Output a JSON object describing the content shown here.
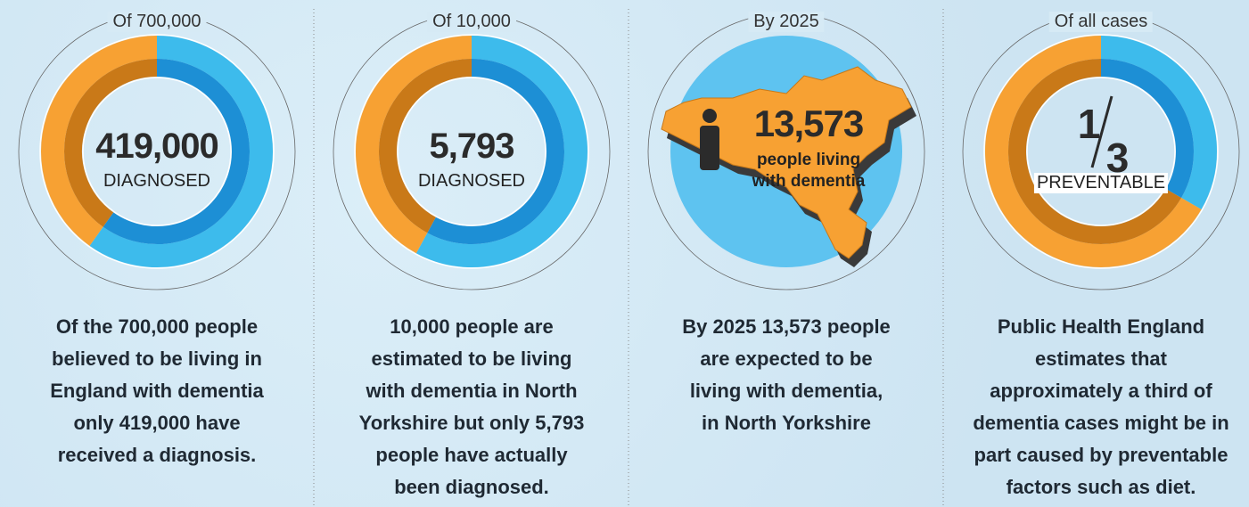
{
  "panels": [
    {
      "caption": "Of 700,000",
      "total": 700000,
      "value": 419000,
      "value_label": "419,000",
      "label": "DIAGNOSED",
      "text": [
        "Of the 700,000 people",
        "believed to be living in",
        "England with dementia",
        "only 419,000 have",
        "received a diagnosis."
      ]
    },
    {
      "caption": "Of 10,000",
      "total": 10000,
      "value": 5793,
      "value_label": "5,793",
      "label": "DIAGNOSED",
      "text": [
        "10,000 people are",
        "estimated to be living",
        "with dementia in North",
        "Yorkshire but only 5,793",
        "people have actually",
        "been diagnosed."
      ]
    },
    {
      "caption": "By 2025",
      "value": 13573,
      "value_label": "13,573",
      "label_lines": [
        "people living",
        "with dementia"
      ],
      "text": [
        "By 2025 13,573 people",
        "are expected to be",
        "living with dementia,",
        "in North Yorkshire"
      ]
    },
    {
      "caption": "Of all cases",
      "value": 1,
      "total": 3,
      "label": "PREVENTABLE",
      "text": [
        "Public Health England",
        "estimates that",
        "approximately a third of",
        "dementia cases might be in",
        "part caused by preventable",
        "factors such as diet."
      ]
    }
  ]
}
